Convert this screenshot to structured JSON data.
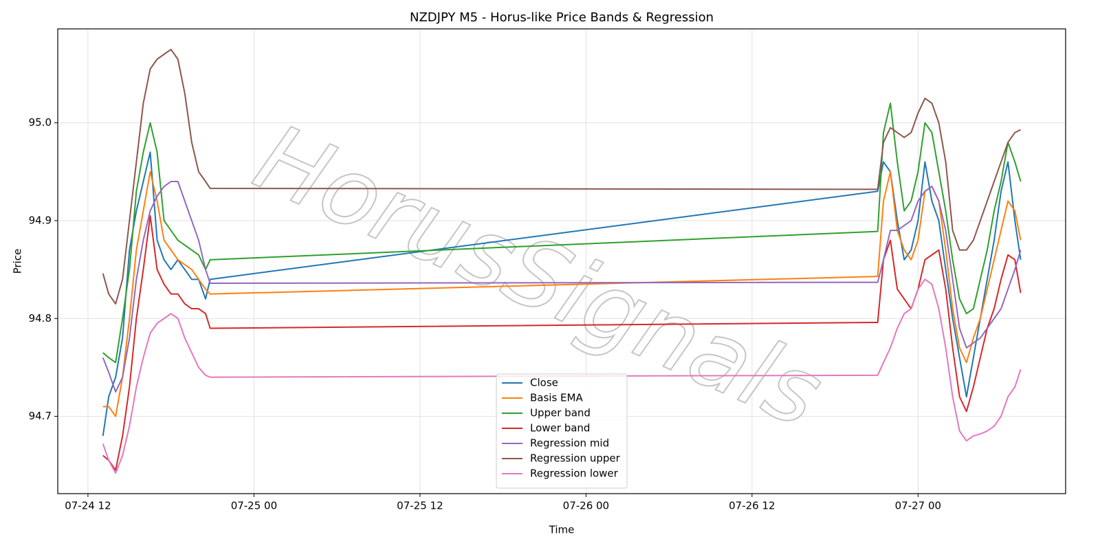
{
  "chart_data": {
    "type": "line",
    "title": "NZDJPY M5 - Horus-like Price Bands & Regression",
    "x_label": "Time",
    "y_label": "Price",
    "watermark": "HorusSignals",
    "x": [
      "07-24 13:05",
      "07-24 13:30",
      "07-24 14:00",
      "07-24 14:30",
      "07-24 15:00",
      "07-24 15:30",
      "07-24 16:00",
      "07-24 16:30",
      "07-24 17:00",
      "07-24 17:30",
      "07-24 18:00",
      "07-24 18:30",
      "07-24 19:00",
      "07-24 19:30",
      "07-24 20:00",
      "07-24 20:30",
      "07-24 20:50",
      "07-26 21:05",
      "07-26 21:30",
      "07-26 22:00",
      "07-26 22:30",
      "07-26 23:00",
      "07-26 23:30",
      "07-27 00:00",
      "07-27 00:30",
      "07-27 01:00",
      "07-27 01:30",
      "07-27 02:00",
      "07-27 02:30",
      "07-27 03:00",
      "07-27 03:30",
      "07-27 04:00",
      "07-27 04:30",
      "07-27 05:00",
      "07-27 05:30",
      "07-27 06:00",
      "07-27 06:30",
      "07-27 07:00",
      "07-27 07:25"
    ],
    "series": [
      {
        "name": "Close",
        "color": "#1f77b4",
        "values": [
          94.68,
          94.72,
          94.74,
          94.78,
          94.87,
          94.91,
          94.94,
          94.97,
          94.88,
          94.86,
          94.85,
          94.86,
          94.85,
          94.84,
          94.84,
          94.82,
          94.84,
          94.93,
          94.96,
          94.95,
          94.9,
          94.86,
          94.87,
          94.9,
          94.96,
          94.92,
          94.9,
          94.85,
          94.8,
          94.76,
          94.72,
          94.76,
          94.8,
          94.84,
          94.88,
          94.93,
          94.96,
          94.9,
          94.86
        ]
      },
      {
        "name": "Basis EMA",
        "color": "#ff7f0e",
        "values": [
          94.71,
          94.71,
          94.7,
          94.74,
          94.8,
          94.87,
          94.91,
          94.95,
          94.92,
          94.88,
          94.87,
          94.86,
          94.855,
          94.85,
          94.84,
          94.83,
          94.825,
          94.843,
          94.92,
          94.95,
          94.89,
          94.87,
          94.86,
          94.88,
          94.93,
          94.935,
          94.92,
          94.87,
          94.81,
          94.77,
          94.755,
          94.78,
          94.8,
          94.83,
          94.86,
          94.89,
          94.92,
          94.91,
          94.88
        ]
      },
      {
        "name": "Upper band",
        "color": "#2ca02c",
        "values": [
          94.765,
          94.76,
          94.755,
          94.8,
          94.85,
          94.93,
          94.97,
          95.0,
          94.97,
          94.9,
          94.89,
          94.88,
          94.875,
          94.87,
          94.865,
          94.85,
          94.86,
          94.889,
          94.99,
          95.02,
          94.96,
          94.91,
          94.92,
          94.95,
          95.0,
          94.99,
          94.95,
          94.91,
          94.86,
          94.82,
          94.805,
          94.81,
          94.84,
          94.87,
          94.91,
          94.94,
          94.98,
          94.96,
          94.94
        ]
      },
      {
        "name": "Lower band",
        "color": "#d62728",
        "values": [
          94.66,
          94.655,
          94.645,
          94.68,
          94.73,
          94.8,
          94.85,
          94.905,
          94.85,
          94.835,
          94.825,
          94.825,
          94.815,
          94.81,
          94.81,
          94.805,
          94.79,
          94.796,
          94.86,
          94.88,
          94.83,
          94.82,
          94.81,
          94.83,
          94.86,
          94.865,
          94.87,
          94.83,
          94.77,
          94.72,
          94.705,
          94.73,
          94.76,
          94.79,
          94.81,
          94.84,
          94.865,
          94.86,
          94.826
        ]
      },
      {
        "name": "Regression mid",
        "color": "#9467bd",
        "values": [
          94.76,
          94.745,
          94.725,
          94.74,
          94.78,
          94.84,
          94.88,
          94.91,
          94.925,
          94.935,
          94.94,
          94.94,
          94.92,
          94.9,
          94.88,
          94.85,
          94.836,
          94.837,
          94.86,
          94.89,
          94.89,
          94.895,
          94.9,
          94.92,
          94.93,
          94.935,
          94.92,
          94.89,
          94.84,
          94.79,
          94.77,
          94.775,
          94.78,
          94.79,
          94.8,
          94.81,
          94.83,
          94.85,
          94.87
        ]
      },
      {
        "name": "Regression upper",
        "color": "#8c564b",
        "values": [
          94.846,
          94.825,
          94.815,
          94.84,
          94.9,
          94.96,
          95.02,
          95.055,
          95.065,
          95.07,
          95.075,
          95.065,
          95.03,
          94.98,
          94.95,
          94.94,
          94.933,
          94.932,
          94.98,
          94.995,
          94.99,
          94.985,
          94.99,
          95.01,
          95.025,
          95.02,
          95.0,
          94.96,
          94.89,
          94.87,
          94.87,
          94.88,
          94.9,
          94.92,
          94.94,
          94.96,
          94.98,
          94.99,
          94.993
        ]
      },
      {
        "name": "Regression lower",
        "color": "#e377c2",
        "values": [
          94.672,
          94.655,
          94.642,
          94.66,
          94.69,
          94.73,
          94.76,
          94.785,
          94.795,
          94.8,
          94.805,
          94.8,
          94.78,
          94.765,
          94.75,
          94.742,
          94.74,
          94.742,
          94.755,
          94.77,
          94.79,
          94.805,
          94.81,
          94.83,
          94.84,
          94.835,
          94.81,
          94.77,
          94.72,
          94.685,
          94.675,
          94.68,
          94.682,
          94.685,
          94.69,
          94.7,
          94.72,
          94.73,
          94.748
        ]
      }
    ],
    "xlim": [
      "07-24 09:49",
      "07-27 10:40"
    ],
    "xticks": [
      "07-24 12",
      "07-25 00",
      "07-25 12",
      "07-26 00",
      "07-26 12",
      "07-27 00"
    ],
    "ylim": [
      94.621,
      95.096
    ],
    "yticks": [
      94.7,
      94.8,
      94.9,
      {
        "value": 95,
        "label": "95.0"
      }
    ],
    "grid": true,
    "legend": "lower center"
  }
}
